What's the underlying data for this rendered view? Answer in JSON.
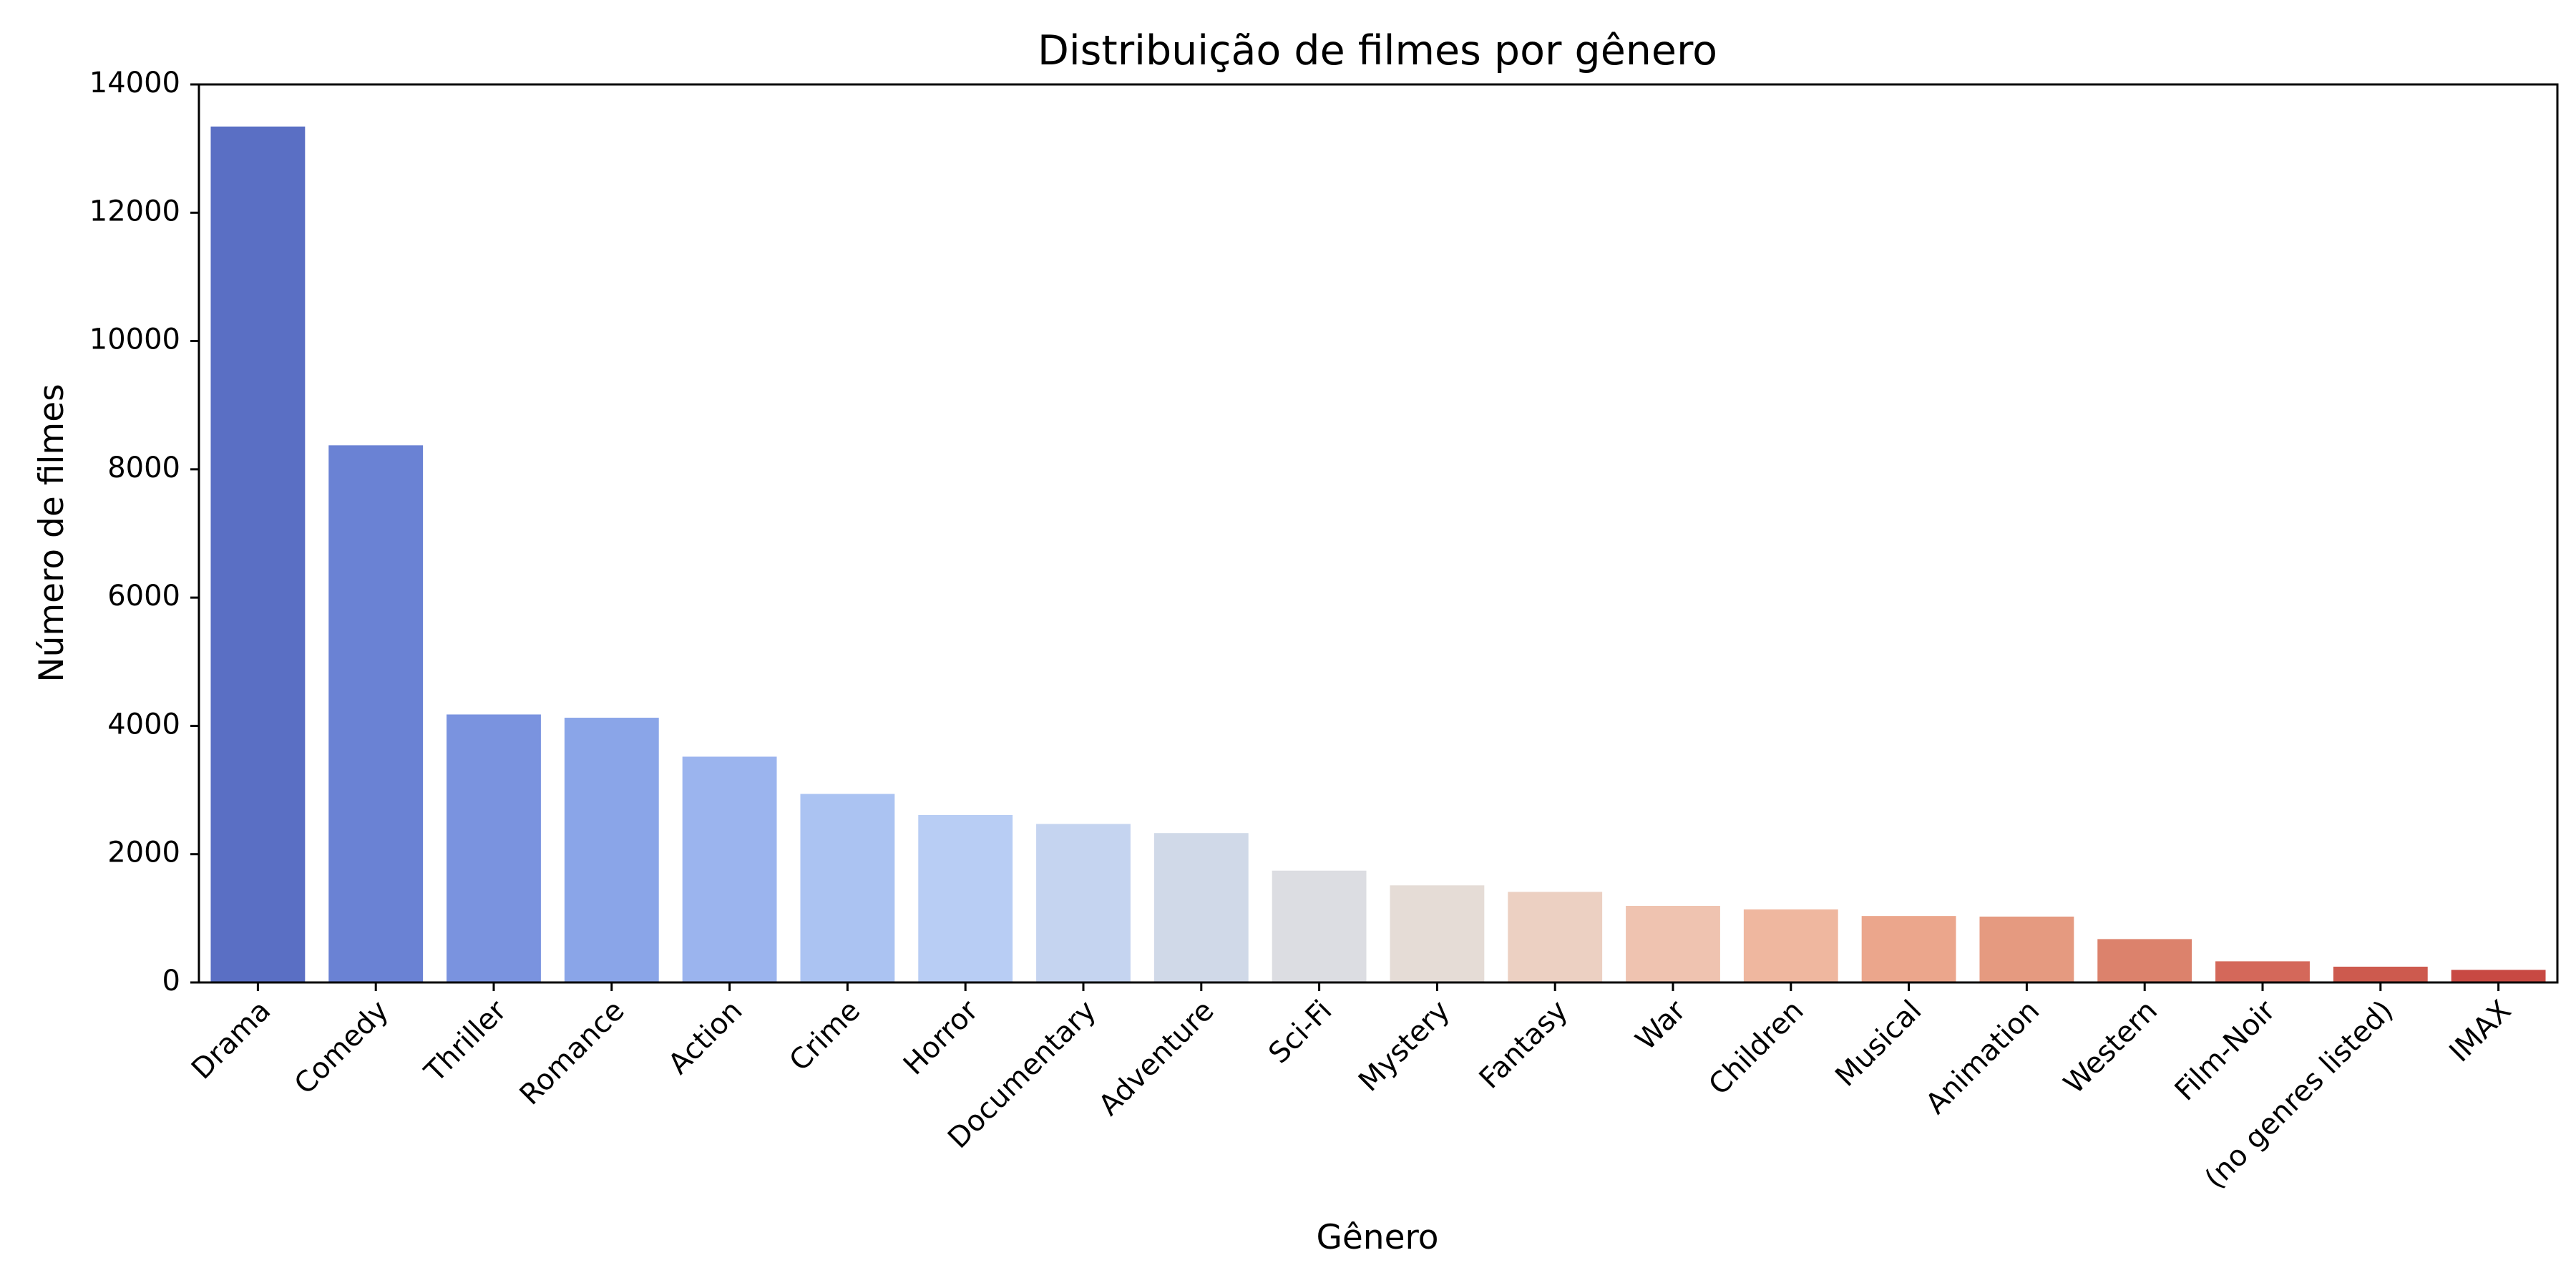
{
  "chart_data": {
    "type": "bar",
    "title": "Distribuição de filmes por gênero",
    "xlabel": "Gênero",
    "ylabel": "Número de filmes",
    "ylim": [
      0,
      14000
    ],
    "yticks": [
      0,
      2000,
      4000,
      6000,
      8000,
      10000,
      12000,
      14000
    ],
    "grid": false,
    "legend": "none",
    "categories": [
      "Drama",
      "Comedy",
      "Thriller",
      "Romance",
      "Action",
      "Crime",
      "Horror",
      "Documentary",
      "Adventure",
      "Sci-Fi",
      "Mystery",
      "Fantasy",
      "War",
      "Children",
      "Musical",
      "Animation",
      "Western",
      "Film-Noir",
      "(no genres listed)",
      "IMAX"
    ],
    "values": [
      13344,
      8374,
      4178,
      4127,
      3520,
      2939,
      2611,
      2471,
      2329,
      1743,
      1514,
      1412,
      1194,
      1139,
      1036,
      1027,
      676,
      330,
      246,
      196
    ],
    "colors": [
      "#5a6fc4",
      "#6a82d4",
      "#7a93df",
      "#8aa5e8",
      "#9bb4ee",
      "#abc3f2",
      "#b8cdf4",
      "#c5d4f0",
      "#d0d9e8",
      "#dcdde2",
      "#e5dcd6",
      "#ecd0c2",
      "#efc3b0",
      "#efb79f",
      "#eba68c",
      "#e59a80",
      "#dc826c",
      "#d4685a",
      "#cd5a4e",
      "#c84943"
    ]
  }
}
